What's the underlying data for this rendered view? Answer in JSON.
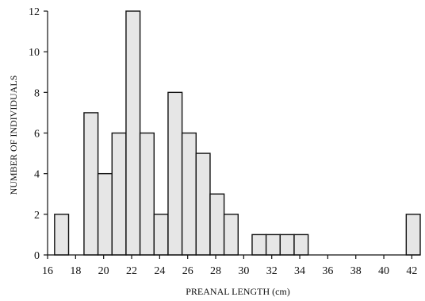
{
  "chart_data": {
    "type": "bar",
    "xlabel": "PREANAL LENGTH (cm)",
    "ylabel": "NUMBER OF INDIVIDUALS",
    "bin_width": 1,
    "x_ticks": [
      16,
      18,
      20,
      22,
      24,
      26,
      28,
      30,
      32,
      34,
      36,
      38,
      40,
      42
    ],
    "y_ticks": [
      0,
      2,
      4,
      6,
      8,
      10,
      12
    ],
    "xlim": [
      16,
      42.6
    ],
    "ylim": [
      0,
      12
    ],
    "bins": [
      {
        "x": 16.5,
        "count": 2
      },
      {
        "x": 18.6,
        "count": 7
      },
      {
        "x": 19.6,
        "count": 4
      },
      {
        "x": 20.6,
        "count": 6
      },
      {
        "x": 21.6,
        "count": 12
      },
      {
        "x": 22.6,
        "count": 6
      },
      {
        "x": 23.6,
        "count": 2
      },
      {
        "x": 24.6,
        "count": 8
      },
      {
        "x": 25.6,
        "count": 6
      },
      {
        "x": 26.6,
        "count": 5
      },
      {
        "x": 27.6,
        "count": 3
      },
      {
        "x": 28.6,
        "count": 2
      },
      {
        "x": 30.6,
        "count": 1
      },
      {
        "x": 31.6,
        "count": 1
      },
      {
        "x": 32.6,
        "count": 1
      },
      {
        "x": 33.6,
        "count": 1
      },
      {
        "x": 41.6,
        "count": 2
      }
    ],
    "grid": false,
    "legend": "none"
  },
  "colors": {
    "bar_fill": "#e6e6e6",
    "bar_stroke": "#111111"
  }
}
